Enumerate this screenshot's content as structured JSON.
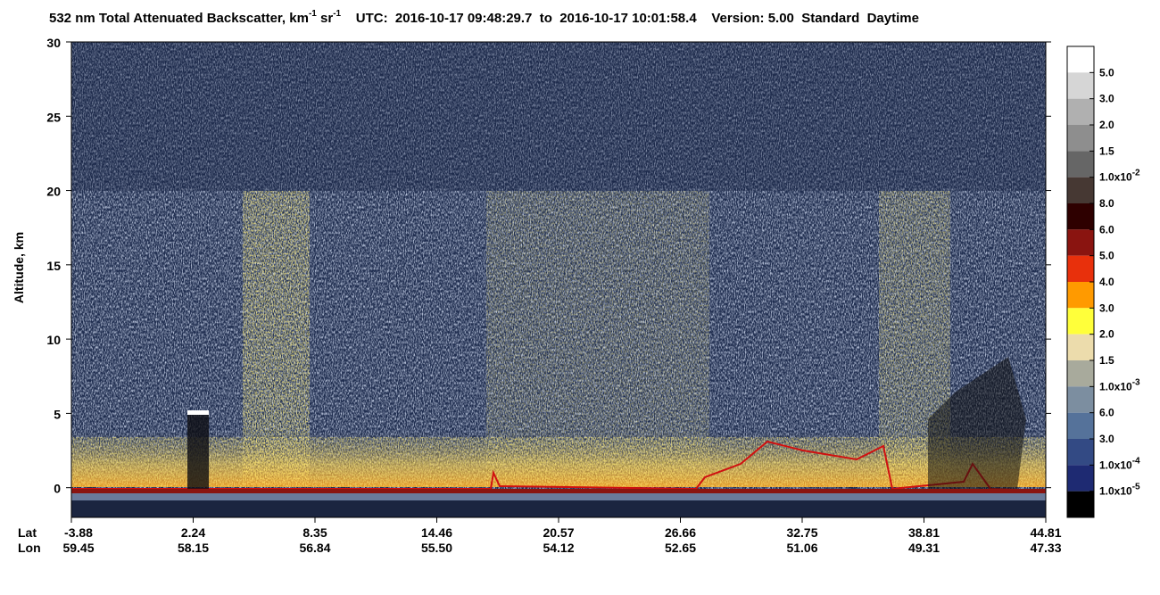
{
  "chart_data": {
    "type": "image",
    "title": {
      "main": "532 nm Total Attenuated Backscatter, km",
      "sup1": "-1",
      "mid": " sr",
      "sup2": "-1",
      "rest": "    UTC:  2016-10-17 09:48:29.7  to  2016-10-17 10:01:58.4    Version: 5.00  Standard  Daytime"
    },
    "ylabel": "Altitude, km",
    "ylim": [
      -2,
      30
    ],
    "yticks": [
      0,
      5,
      10,
      15,
      20,
      25,
      30
    ],
    "x_rows": [
      {
        "name": "Lat",
        "labels": [
          "-3.88",
          "2.24",
          "8.35",
          "14.46",
          "20.57",
          "26.66",
          "32.75",
          "38.81",
          "44.81"
        ]
      },
      {
        "name": "Lon",
        "labels": [
          "59.45",
          "58.15",
          "56.84",
          "55.50",
          "54.12",
          "52.65",
          "51.06",
          "49.31",
          "47.33"
        ]
      }
    ],
    "colorbar": {
      "colors": [
        "#ffffff",
        "#d6d6d6",
        "#b0b0b0",
        "#8e8e8e",
        "#666666",
        "#463833",
        "#2e0000",
        "#8a1410",
        "#e8300c",
        "#ff9a00",
        "#ffff3a",
        "#ecdcac",
        "#a8aa9c",
        "#7c8ea0",
        "#55729a",
        "#334a84",
        "#1e2a72",
        "#000000"
      ],
      "labels": [
        {
          "text": "5.0"
        },
        {
          "text": "3.0"
        },
        {
          "text": "2.0"
        },
        {
          "text": "1.5"
        },
        {
          "text": "1.0x10",
          "sup": "-2"
        },
        {
          "text": "8.0"
        },
        {
          "text": "6.0"
        },
        {
          "text": "5.0"
        },
        {
          "text": "4.0"
        },
        {
          "text": "3.0"
        },
        {
          "text": "2.0"
        },
        {
          "text": "1.5"
        },
        {
          "text": "1.0x10",
          "sup": "-3"
        },
        {
          "text": "6.0"
        },
        {
          "text": "3.0"
        },
        {
          "text": "1.0x10",
          "sup": "-4"
        },
        {
          "text": "1.0x10",
          "sup": "-5"
        }
      ]
    }
  }
}
